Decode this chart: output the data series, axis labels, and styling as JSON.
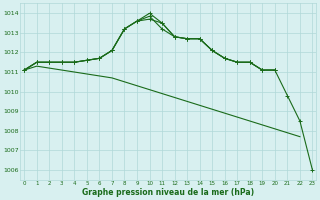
{
  "bg_color": "#d8f0f0",
  "grid_color": "#b0d8d8",
  "line_color": "#1a6b1a",
  "xlabel": "Graphe pression niveau de la mer (hPa)",
  "ylim": [
    1005.5,
    1014.5
  ],
  "xlim": [
    -0.3,
    23.3
  ],
  "yticks": [
    1006,
    1007,
    1008,
    1009,
    1010,
    1011,
    1012,
    1013,
    1014
  ],
  "xticks": [
    0,
    1,
    2,
    3,
    4,
    5,
    6,
    7,
    8,
    9,
    10,
    11,
    12,
    13,
    14,
    15,
    16,
    17,
    18,
    19,
    20,
    21,
    22,
    23
  ],
  "series": [
    {
      "x": [
        0,
        1,
        2,
        3,
        4,
        5,
        6,
        7,
        8,
        9,
        10,
        11,
        12,
        13,
        14,
        15,
        16,
        17,
        18,
        19,
        20
      ],
      "y": [
        1011.1,
        1011.5,
        1011.5,
        1011.5,
        1011.5,
        1011.6,
        1011.7,
        1012.1,
        1013.2,
        1013.6,
        1013.7,
        1013.5,
        1012.8,
        1012.7,
        1012.7,
        1012.1,
        1011.7,
        1011.5,
        1011.5,
        1011.1,
        1011.1
      ],
      "markers": true
    },
    {
      "x": [
        0,
        1,
        2,
        3,
        4,
        5,
        6,
        7,
        8,
        9,
        10,
        11,
        12,
        13,
        14,
        15,
        16,
        17,
        18,
        19,
        20,
        21,
        22,
        23
      ],
      "y": [
        1011.1,
        1011.5,
        1011.5,
        1011.5,
        1011.5,
        1011.6,
        1011.7,
        1012.1,
        1013.2,
        1013.6,
        1014.0,
        1013.5,
        1012.8,
        1012.7,
        1012.7,
        1012.1,
        1011.7,
        1011.5,
        1011.5,
        1011.1,
        1011.1,
        1009.8,
        1008.5,
        1006.0
      ],
      "markers": true
    },
    {
      "x": [
        0,
        1,
        2,
        3,
        4,
        5,
        6,
        7,
        8,
        9,
        10,
        11,
        12,
        13,
        14,
        15,
        16,
        17,
        18,
        19,
        20
      ],
      "y": [
        1011.1,
        1011.5,
        1011.5,
        1011.5,
        1011.5,
        1011.6,
        1011.7,
        1012.1,
        1013.2,
        1013.6,
        1013.85,
        1013.2,
        1012.8,
        1012.7,
        1012.7,
        1012.1,
        1011.7,
        1011.5,
        1011.5,
        1011.1,
        1011.1
      ],
      "markers": true
    },
    {
      "x": [
        0,
        1,
        2,
        3,
        4,
        5,
        6,
        7,
        8,
        9,
        10,
        11,
        12,
        13,
        14,
        15,
        16,
        17,
        18,
        19,
        20,
        21,
        22,
        23
      ],
      "y": [
        1011.1,
        1011.3,
        1011.2,
        1011.1,
        1011.0,
        1010.9,
        1010.8,
        1010.7,
        1010.5,
        1010.3,
        1010.1,
        1009.9,
        1009.7,
        1009.5,
        1009.3,
        1009.1,
        1008.9,
        1008.7,
        1008.5,
        1008.3,
        1008.1,
        1007.9,
        1007.7,
        null
      ],
      "markers": false
    }
  ],
  "figsize": [
    3.2,
    2.0
  ],
  "dpi": 100
}
